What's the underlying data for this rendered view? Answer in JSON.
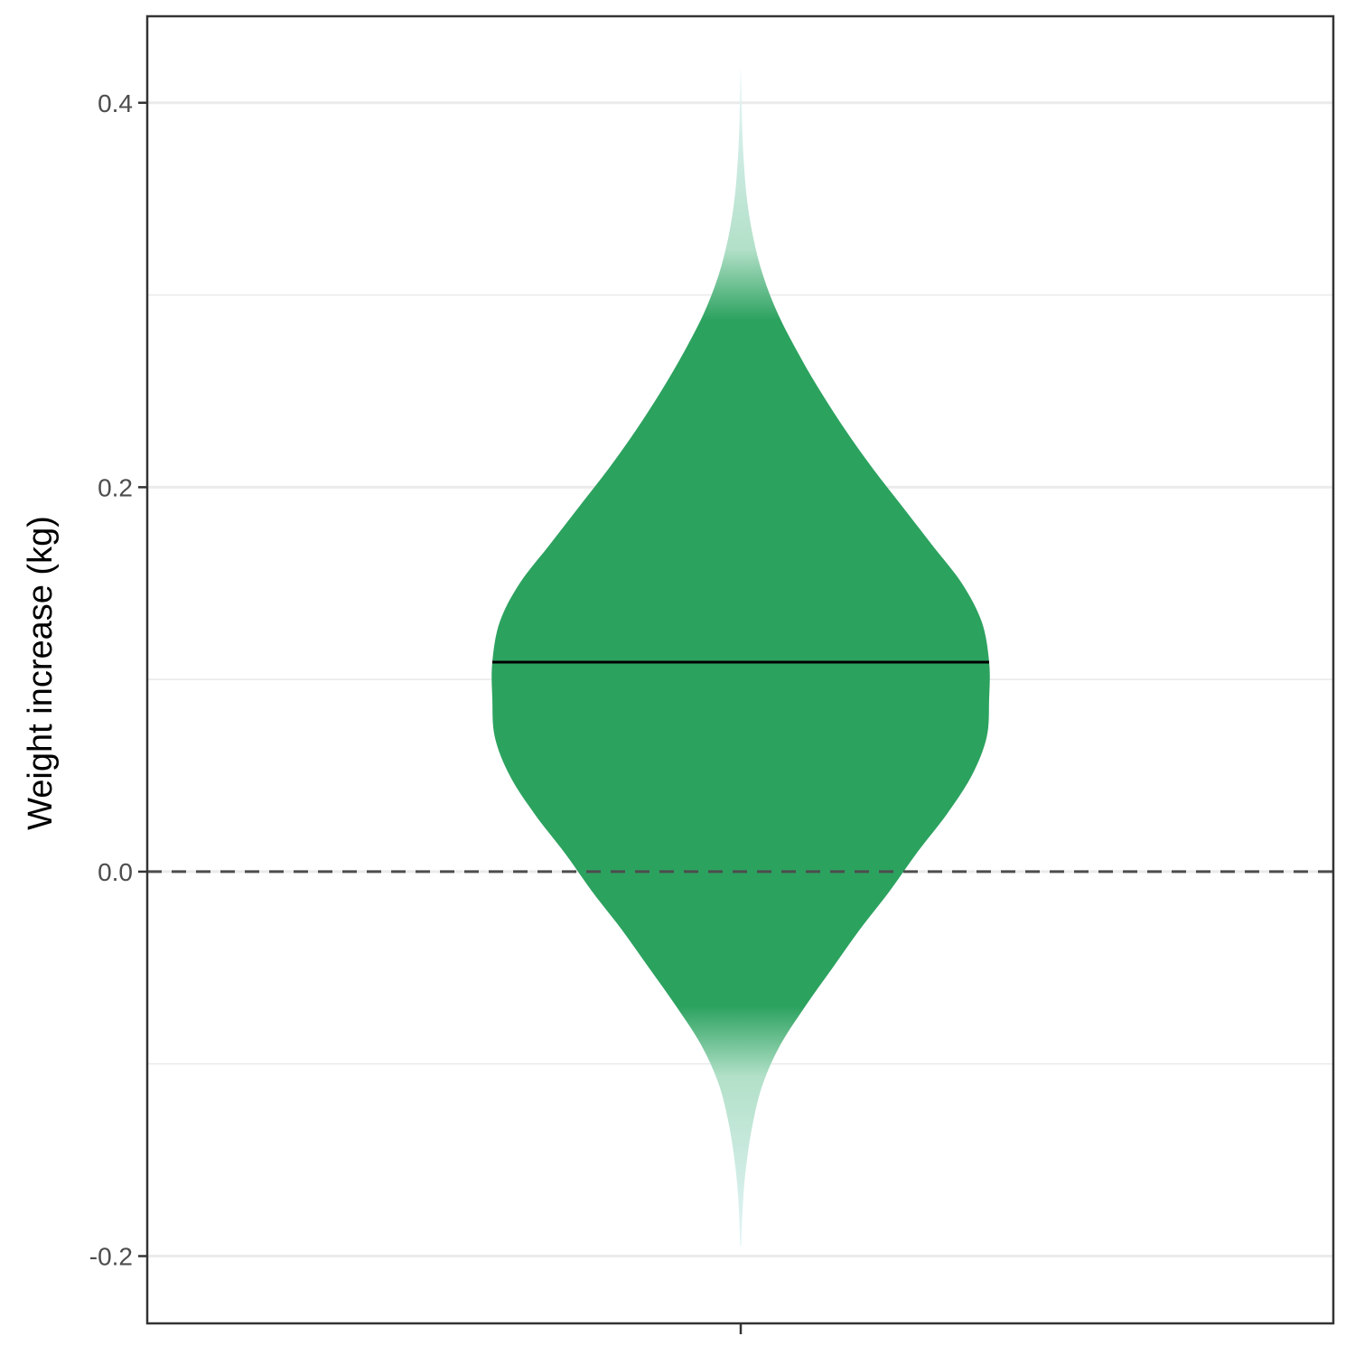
{
  "chart_data": {
    "type": "violin",
    "title": "",
    "xlabel": "",
    "ylabel": "Weight increase (kg)",
    "ylim": [
      -0.235,
      0.445
    ],
    "y_ticks": [
      -0.2,
      0.0,
      0.2,
      0.4
    ],
    "y_tick_labels": [
      "-0.2",
      "0.0",
      "0.2",
      "0.4"
    ],
    "y_minor_gridlines": [
      -0.1,
      0.1,
      0.3
    ],
    "grid": true,
    "reference_line": {
      "y": 0.0,
      "style": "dashed",
      "color": "#4d4d4d"
    },
    "median": 0.109,
    "fill_color": "#2ca25f",
    "fade_color": "#e5f5f9",
    "solid_range": [
      -0.07,
      0.287
    ],
    "density": {
      "y": [
        -0.195,
        -0.17,
        -0.15,
        -0.13,
        -0.11,
        -0.09,
        -0.07,
        -0.05,
        -0.03,
        -0.01,
        0.01,
        0.03,
        0.05,
        0.07,
        0.09,
        0.109,
        0.13,
        0.15,
        0.17,
        0.19,
        0.21,
        0.23,
        0.25,
        0.27,
        0.29,
        0.31,
        0.33,
        0.35,
        0.37,
        0.39,
        0.415
      ],
      "half_width": [
        0.002,
        0.01,
        0.025,
        0.05,
        0.09,
        0.16,
        0.26,
        0.37,
        0.48,
        0.6,
        0.71,
        0.83,
        0.93,
        0.99,
        1.0,
        1.0,
        0.97,
        0.89,
        0.77,
        0.65,
        0.53,
        0.42,
        0.32,
        0.23,
        0.15,
        0.09,
        0.05,
        0.025,
        0.012,
        0.005,
        0.001
      ]
    }
  }
}
